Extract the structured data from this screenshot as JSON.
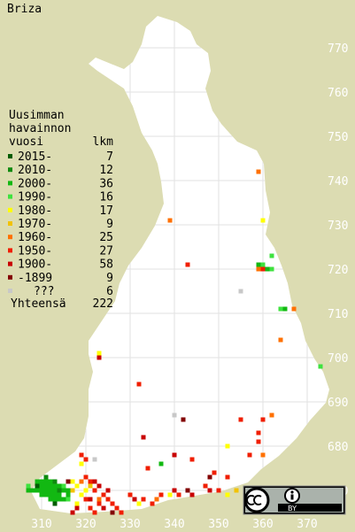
{
  "chart_data": {
    "type": "map",
    "title": "Briza",
    "legend_title": [
      "Uusimman",
      "havainnon",
      "vuosi"
    ],
    "count_header": "lkm",
    "legend": [
      {
        "label": "2015-",
        "count": 7,
        "color": "#005c00"
      },
      {
        "label": "2010-",
        "count": 12,
        "color": "#0f8a0f"
      },
      {
        "label": "2000-",
        "count": 36,
        "color": "#12b812"
      },
      {
        "label": "1990-",
        "count": 16,
        "color": "#3ee23e"
      },
      {
        "label": "1980-",
        "count": 17,
        "color": "#ffff00"
      },
      {
        "label": "1970-",
        "count": 9,
        "color": "#f2c200"
      },
      {
        "label": "1960-",
        "count": 25,
        "color": "#ff7000"
      },
      {
        "label": "1950-",
        "count": 27,
        "color": "#f01e00"
      },
      {
        "label": "1900-",
        "count": 58,
        "color": "#c80000"
      },
      {
        "label": "-1899",
        "count": 9,
        "color": "#820000"
      },
      {
        "label": "???",
        "count": 6,
        "color": "#c8c8c8"
      }
    ],
    "total_label": "Yhteensä",
    "total": 222,
    "xlim": [
      300.6,
      380.8
    ],
    "ylim": [
      660.6,
      780.8
    ],
    "xticks": [
      310,
      320,
      330,
      340,
      350,
      360,
      370
    ],
    "yticks": [
      670,
      680,
      690,
      700,
      710,
      720,
      730,
      740,
      750,
      760,
      770
    ],
    "license": "BY",
    "squares": [
      [
        359,
        742,
        6
      ],
      [
        339,
        731,
        6
      ],
      [
        360,
        731,
        4
      ],
      [
        343,
        721,
        7
      ],
      [
        362,
        723,
        3
      ],
      [
        359,
        721,
        2
      ],
      [
        360,
        721,
        3
      ],
      [
        359,
        720,
        6
      ],
      [
        360,
        720,
        7
      ],
      [
        361,
        720,
        2
      ],
      [
        362,
        720,
        3
      ],
      [
        355,
        715,
        10
      ],
      [
        364,
        711,
        3
      ],
      [
        365,
        711,
        2
      ],
      [
        367,
        711,
        6
      ],
      [
        364,
        704,
        6
      ],
      [
        373,
        698,
        3
      ],
      [
        323,
        701,
        4
      ],
      [
        323,
        700,
        8
      ],
      [
        332,
        694,
        7
      ],
      [
        340,
        687,
        10
      ],
      [
        342,
        686,
        9
      ],
      [
        355,
        686,
        7
      ],
      [
        360,
        686,
        7
      ],
      [
        362,
        687,
        6
      ],
      [
        359,
        683,
        7
      ],
      [
        359,
        681,
        7
      ],
      [
        333,
        682,
        8
      ],
      [
        352,
        680,
        4
      ],
      [
        357,
        678,
        7
      ],
      [
        360,
        678,
        6
      ],
      [
        340,
        678,
        8
      ],
      [
        337,
        676,
        2
      ],
      [
        334,
        675,
        7
      ],
      [
        344,
        677,
        7
      ],
      [
        349,
        674,
        7
      ],
      [
        348,
        673,
        9
      ],
      [
        352,
        673,
        7
      ],
      [
        322,
        677,
        10
      ],
      [
        309,
        672,
        2
      ],
      [
        310,
        672,
        2
      ],
      [
        311,
        672,
        2
      ],
      [
        312,
        672,
        2
      ],
      [
        310,
        671,
        2
      ],
      [
        311,
        671,
        2
      ],
      [
        312,
        671,
        2
      ],
      [
        313,
        671,
        2
      ],
      [
        314,
        671,
        2
      ],
      [
        309,
        670,
        2
      ],
      [
        310,
        670,
        2
      ],
      [
        311,
        670,
        2
      ],
      [
        312,
        670,
        2
      ],
      [
        313,
        670,
        2
      ],
      [
        308,
        670,
        2
      ],
      [
        307,
        670,
        2
      ],
      [
        311,
        669,
        2
      ],
      [
        312,
        669,
        2
      ],
      [
        313,
        669,
        2
      ],
      [
        314,
        669,
        2
      ],
      [
        310,
        669,
        2
      ],
      [
        312,
        668,
        2
      ],
      [
        313,
        668,
        2
      ],
      [
        314,
        668,
        2
      ],
      [
        315,
        668,
        2
      ],
      [
        316,
        669,
        2
      ],
      [
        315,
        670,
        2
      ],
      [
        316,
        670,
        2
      ],
      [
        311,
        673,
        1
      ],
      [
        313,
        672,
        1
      ],
      [
        314,
        670,
        1
      ],
      [
        315,
        671,
        3
      ],
      [
        316,
        668,
        3
      ],
      [
        307,
        671,
        3
      ],
      [
        309,
        671,
        0
      ],
      [
        313,
        667,
        0
      ],
      [
        317,
        672,
        4
      ],
      [
        318,
        671,
        4
      ],
      [
        319,
        669,
        4
      ],
      [
        318,
        667,
        4
      ],
      [
        320,
        670,
        4
      ],
      [
        319,
        676,
        4
      ],
      [
        317,
        670,
        5
      ],
      [
        321,
        671,
        5
      ],
      [
        320,
        673,
        7
      ],
      [
        321,
        672,
        7
      ],
      [
        322,
        670,
        7
      ],
      [
        320,
        668,
        7
      ],
      [
        321,
        666,
        7
      ],
      [
        323,
        667,
        7
      ],
      [
        324,
        669,
        7
      ],
      [
        325,
        668,
        7
      ],
      [
        322,
        665,
        7
      ],
      [
        326,
        667,
        7
      ],
      [
        327,
        666,
        7
      ],
      [
        328,
        665,
        7
      ],
      [
        319,
        678,
        7
      ],
      [
        320,
        677,
        7
      ],
      [
        322,
        672,
        8
      ],
      [
        323,
        671,
        8
      ],
      [
        324,
        666,
        8
      ],
      [
        325,
        670,
        8
      ],
      [
        321,
        668,
        8
      ],
      [
        318,
        666,
        8
      ],
      [
        317,
        665,
        8
      ],
      [
        316,
        672,
        9
      ],
      [
        326,
        665,
        9
      ],
      [
        319,
        672,
        6
      ],
      [
        323,
        668,
        6
      ],
      [
        330,
        669,
        7
      ],
      [
        331,
        668,
        8
      ],
      [
        332,
        667,
        4
      ],
      [
        333,
        668,
        7
      ],
      [
        335,
        667,
        7
      ],
      [
        336,
        668,
        6
      ],
      [
        337,
        669,
        7
      ],
      [
        339,
        669,
        4
      ],
      [
        340,
        670,
        8
      ],
      [
        341,
        669,
        7
      ],
      [
        343,
        670,
        9
      ],
      [
        344,
        669,
        8
      ],
      [
        347,
        671,
        7
      ],
      [
        348,
        670,
        8
      ],
      [
        350,
        670,
        7
      ],
      [
        352,
        669,
        4
      ],
      [
        354,
        670,
        5
      ]
    ]
  }
}
